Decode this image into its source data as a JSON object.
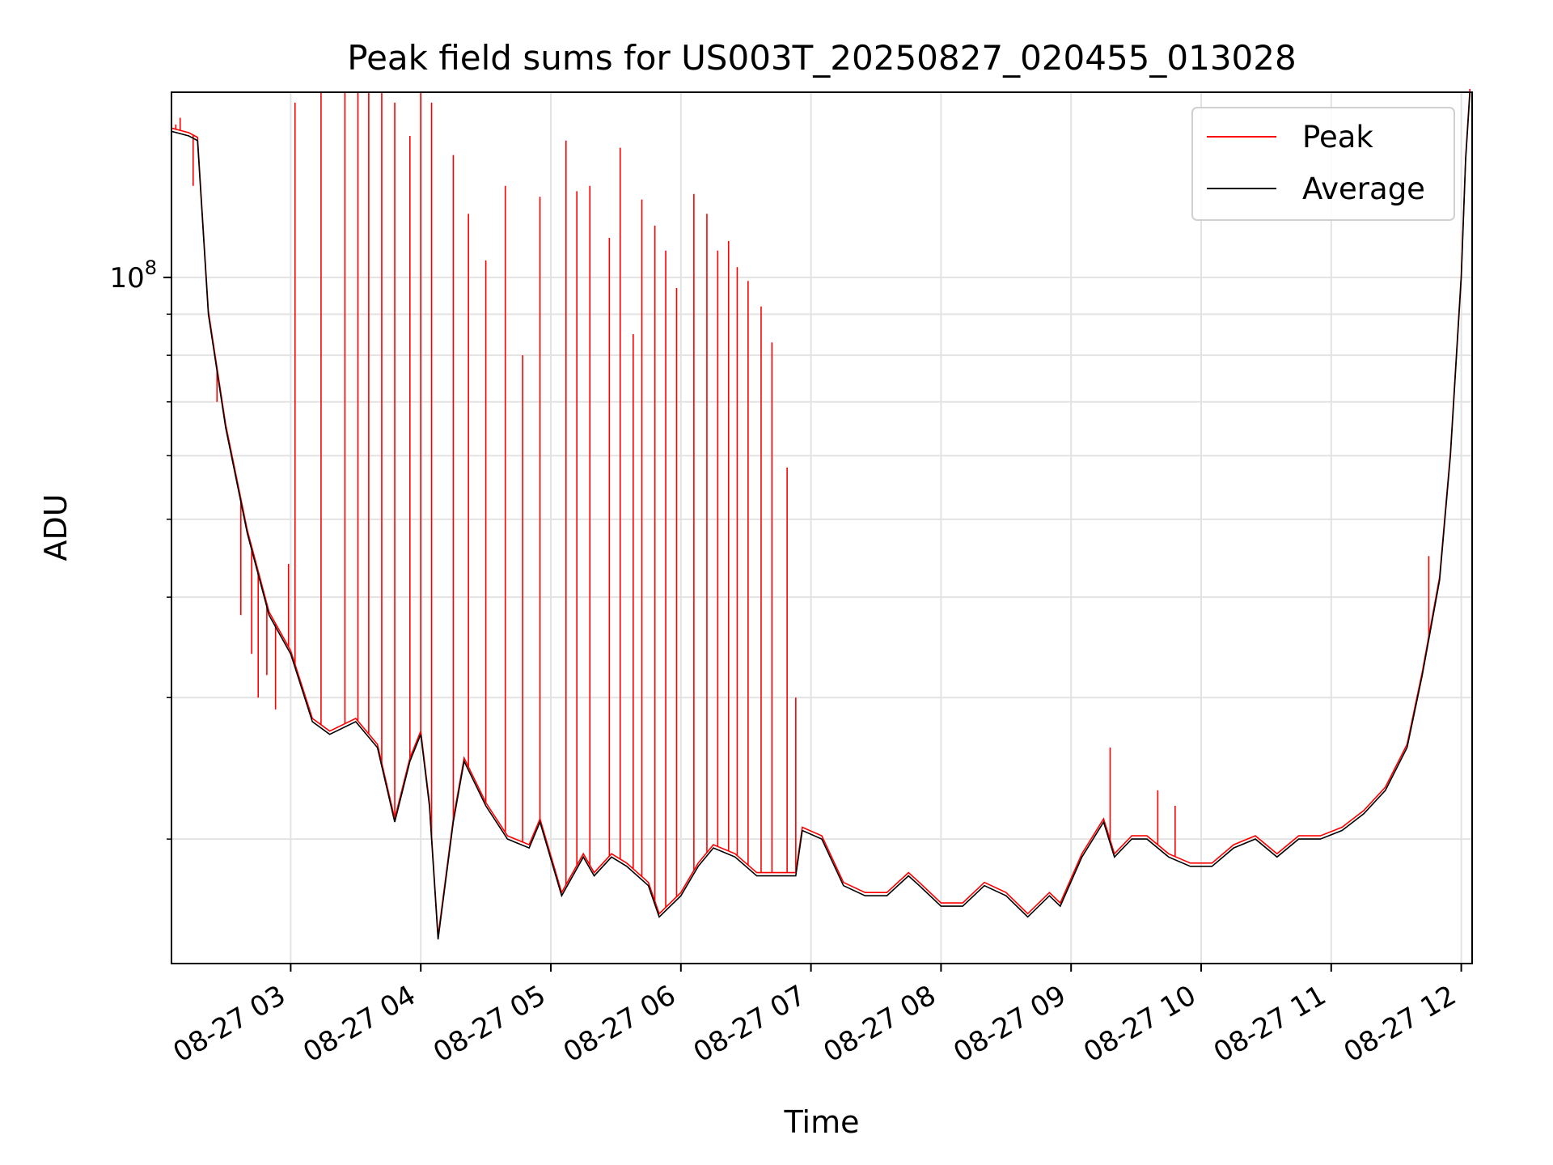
{
  "chart_data": {
    "type": "line",
    "title": "Peak field sums for US003T_20250827_020455_013028",
    "xlabel": "Time",
    "ylabel": "ADU",
    "y_scale": "log",
    "grid": true,
    "legend_placement": "top-right",
    "x_ticks": [
      "08-27 03",
      "08-27 04",
      "08-27 05",
      "08-27 06",
      "08-27 07",
      "08-27 08",
      "08-27 09",
      "08-27 10",
      "08-27 11",
      "08-27 12"
    ],
    "y_ticks": [
      {
        "base": "10",
        "exp": "8"
      }
    ],
    "xlim": [
      "2025-08-27 02:05",
      "2025-08-27 12:05"
    ],
    "ylim": [
      14000000,
      170000000
    ],
    "series": [
      {
        "name": "Average",
        "color": "#000000",
        "x": [
          "2025-08-27 02:05",
          "2025-08-27 02:13",
          "2025-08-27 02:17",
          "2025-08-27 02:22",
          "2025-08-27 02:30",
          "2025-08-27 02:40",
          "2025-08-27 02:50",
          "2025-08-27 03:00",
          "2025-08-27 03:10",
          "2025-08-27 03:18",
          "2025-08-27 03:30",
          "2025-08-27 03:40",
          "2025-08-27 03:48",
          "2025-08-27 03:55",
          "2025-08-27 04:00",
          "2025-08-27 04:04",
          "2025-08-27 04:08",
          "2025-08-27 04:15",
          "2025-08-27 04:20",
          "2025-08-27 04:30",
          "2025-08-27 04:40",
          "2025-08-27 04:50",
          "2025-08-27 04:55",
          "2025-08-27 05:05",
          "2025-08-27 05:15",
          "2025-08-27 05:20",
          "2025-08-27 05:28",
          "2025-08-27 05:35",
          "2025-08-27 05:45",
          "2025-08-27 05:50",
          "2025-08-27 06:00",
          "2025-08-27 06:08",
          "2025-08-27 06:15",
          "2025-08-27 06:25",
          "2025-08-27 06:35",
          "2025-08-27 06:45",
          "2025-08-27 06:53",
          "2025-08-27 06:56",
          "2025-08-27 07:05",
          "2025-08-27 07:15",
          "2025-08-27 07:25",
          "2025-08-27 07:35",
          "2025-08-27 07:45",
          "2025-08-27 07:50",
          "2025-08-27 08:00",
          "2025-08-27 08:10",
          "2025-08-27 08:20",
          "2025-08-27 08:30",
          "2025-08-27 08:40",
          "2025-08-27 08:50",
          "2025-08-27 08:55",
          "2025-08-27 09:05",
          "2025-08-27 09:15",
          "2025-08-27 09:20",
          "2025-08-27 09:28",
          "2025-08-27 09:35",
          "2025-08-27 09:45",
          "2025-08-27 09:55",
          "2025-08-27 10:05",
          "2025-08-27 10:15",
          "2025-08-27 10:25",
          "2025-08-27 10:35",
          "2025-08-27 10:45",
          "2025-08-27 10:55",
          "2025-08-27 11:05",
          "2025-08-27 11:15",
          "2025-08-27 11:25",
          "2025-08-27 11:35",
          "2025-08-27 11:42",
          "2025-08-27 11:50",
          "2025-08-27 11:55",
          "2025-08-27 12:00",
          "2025-08-27 12:02",
          "2025-08-27 12:04"
        ],
        "y": [
          152000000,
          150000000,
          148000000,
          90000000,
          65000000,
          48000000,
          38000000,
          34000000,
          28000000,
          27000000,
          28000000,
          26000000,
          21000000,
          25000000,
          27000000,
          22000000,
          15000000,
          21000000,
          25000000,
          22000000,
          20000000,
          19500000,
          21000000,
          17000000,
          19000000,
          18000000,
          19000000,
          18500000,
          17500000,
          16000000,
          17000000,
          18500000,
          19500000,
          19000000,
          18000000,
          18000000,
          18000000,
          20500000,
          20000000,
          17500000,
          17000000,
          17000000,
          18000000,
          17500000,
          16500000,
          16500000,
          17500000,
          17000000,
          16000000,
          17000000,
          16500000,
          19000000,
          21000000,
          19000000,
          20000000,
          20000000,
          19000000,
          18500000,
          18500000,
          19500000,
          20000000,
          19000000,
          20000000,
          20000000,
          20500000,
          21500000,
          23000000,
          26000000,
          32000000,
          42000000,
          60000000,
          100000000,
          140000000,
          170000000
        ]
      },
      {
        "name": "Peak",
        "color": "#ff0000",
        "spike_times": [
          "2025-08-27 02:07",
          "2025-08-27 02:09",
          "2025-08-27 02:15",
          "2025-08-27 02:26",
          "2025-08-27 02:37",
          "2025-08-27 02:42",
          "2025-08-27 02:45",
          "2025-08-27 02:49",
          "2025-08-27 02:53",
          "2025-08-27 02:59",
          "2025-08-27 03:02",
          "2025-08-27 03:14",
          "2025-08-27 03:25",
          "2025-08-27 03:31",
          "2025-08-27 03:36",
          "2025-08-27 03:42",
          "2025-08-27 03:48",
          "2025-08-27 03:55",
          "2025-08-27 04:00",
          "2025-08-27 04:05",
          "2025-08-27 04:15",
          "2025-08-27 04:22",
          "2025-08-27 04:30",
          "2025-08-27 04:39",
          "2025-08-27 04:47",
          "2025-08-27 04:55",
          "2025-08-27 05:07",
          "2025-08-27 05:12",
          "2025-08-27 05:18",
          "2025-08-27 05:27",
          "2025-08-27 05:32",
          "2025-08-27 05:38",
          "2025-08-27 05:42",
          "2025-08-27 05:48",
          "2025-08-27 05:53",
          "2025-08-27 05:58",
          "2025-08-27 06:06",
          "2025-08-27 06:12",
          "2025-08-27 06:17",
          "2025-08-27 06:22",
          "2025-08-27 06:26",
          "2025-08-27 06:31",
          "2025-08-27 06:37",
          "2025-08-27 06:42",
          "2025-08-27 06:49",
          "2025-08-27 06:53",
          "2025-08-27 09:18",
          "2025-08-27 09:40",
          "2025-08-27 09:48",
          "2025-08-27 11:45"
        ],
        "spike_values": [
          155000000,
          158000000,
          130000000,
          70000000,
          38000000,
          34000000,
          30000000,
          32000000,
          29000000,
          44000000,
          165000000,
          170000000,
          170000000,
          170000000,
          170000000,
          170000000,
          165000000,
          150000000,
          170000000,
          165000000,
          142000000,
          120000000,
          105000000,
          130000000,
          80000000,
          126000000,
          148000000,
          128000000,
          130000000,
          112000000,
          145000000,
          85000000,
          125000000,
          116000000,
          108000000,
          97000000,
          127000000,
          120000000,
          108000000,
          111000000,
          103000000,
          99000000,
          92000000,
          83000000,
          58000000,
          30000000,
          26000000,
          23000000,
          22000000,
          45000000
        ]
      }
    ]
  }
}
